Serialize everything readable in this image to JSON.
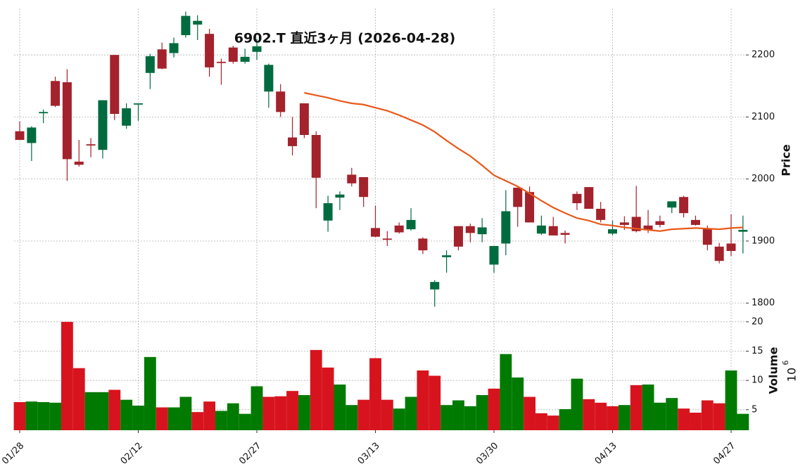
{
  "chart_data": {
    "type": "candlestick",
    "title": "6902.T 直近3ヶ月 (2026-04-28)",
    "categories": [
      "01/28",
      null,
      null,
      null,
      null,
      null,
      null,
      null,
      null,
      null,
      "02/12",
      null,
      null,
      null,
      null,
      null,
      null,
      null,
      null,
      null,
      "02/27",
      null,
      null,
      null,
      null,
      null,
      null,
      null,
      null,
      null,
      "03/13",
      null,
      null,
      null,
      null,
      null,
      null,
      null,
      null,
      null,
      "03/30",
      null,
      null,
      null,
      null,
      null,
      null,
      null,
      null,
      null,
      "04/13",
      null,
      null,
      null,
      null,
      null,
      null,
      null,
      null,
      null,
      "04/27",
      null
    ],
    "open": [
      2077,
      2058,
      2106,
      2158,
      2156,
      2028,
      2056,
      2047,
      2200,
      2086,
      2120,
      2171,
      2209,
      2203,
      2232,
      2249,
      2234,
      2189,
      2212,
      2189,
      2205,
      2141,
      2141,
      2067,
      2122,
      2071,
      1933,
      1970,
      2007,
      2003,
      1921,
      1904,
      1925,
      1919,
      1904,
      1822,
      1874,
      1924,
      1924,
      1911,
      1862,
      1896,
      1986,
      1979,
      1912,
      1924,
      1913,
      1976,
      1987,
      1952,
      1912,
      1930,
      1939,
      1925,
      1932,
      1954,
      1971,
      1934,
      1920,
      1891,
      1896,
      1915
    ],
    "high": [
      2093,
      2085,
      2112,
      2165,
      2177,
      2063,
      2066,
      2127,
      2200,
      2122,
      2122,
      2202,
      2220,
      2228,
      2270,
      2264,
      2242,
      2194,
      2215,
      2210,
      2226,
      2186,
      2153,
      2100,
      2122,
      2077,
      1973,
      1980,
      2018,
      2003,
      1957,
      1916,
      1930,
      1953,
      1906,
      1837,
      1885,
      1924,
      1928,
      1937,
      1892,
      1982,
      1986,
      1988,
      1941,
      1939,
      1917,
      1980,
      1987,
      1963,
      1933,
      1940,
      1989,
      1950,
      1941,
      1964,
      1973,
      1941,
      1925,
      1897,
      1943,
      1941
    ],
    "low": [
      2063,
      2029,
      2090,
      2116,
      1997,
      2020,
      2035,
      2033,
      2095,
      2081,
      2094,
      2145,
      2177,
      2196,
      2228,
      2224,
      2165,
      2152,
      2186,
      2186,
      2192,
      2115,
      2100,
      2038,
      2066,
      1953,
      1915,
      1950,
      1988,
      1955,
      1906,
      1892,
      1912,
      1917,
      1879,
      1794,
      1849,
      1885,
      1898,
      1898,
      1849,
      1877,
      1923,
      1930,
      1910,
      1909,
      1896,
      1950,
      1952,
      1930,
      1909,
      1918,
      1914,
      1913,
      1922,
      1945,
      1938,
      1925,
      1885,
      1864,
      1876,
      1880
    ],
    "close": [
      2063,
      2083,
      2108,
      2118,
      2032,
      2023,
      2054,
      2127,
      2105,
      2114,
      2122,
      2198,
      2178,
      2219,
      2263,
      2255,
      2180,
      2187,
      2189,
      2197,
      2214,
      2184,
      2108,
      2053,
      2071,
      2002,
      1961,
      1975,
      1993,
      1971,
      1907,
      1902,
      1914,
      1934,
      1885,
      1834,
      1877,
      1891,
      1913,
      1922,
      1892,
      1948,
      1955,
      1930,
      1925,
      1909,
      1910,
      1961,
      1952,
      1934,
      1919,
      1926,
      1916,
      1918,
      1926,
      1964,
      1945,
      1926,
      1894,
      1868,
      1884,
      1918
    ],
    "up_color": "#006b3f",
    "down_color": "#a3222b",
    "ylim": [
      1782,
      2275
    ],
    "yticks": [
      1800,
      1900,
      2000,
      2100,
      2200
    ],
    "ylabel": "Price",
    "grid": true,
    "ma": {
      "color": "#e8591a",
      "values": [
        null,
        null,
        null,
        null,
        null,
        null,
        null,
        null,
        null,
        null,
        null,
        null,
        null,
        null,
        null,
        null,
        null,
        null,
        null,
        null,
        null,
        null,
        null,
        null,
        2139,
        2135,
        2131,
        2126,
        2122,
        2120,
        2115,
        2110,
        2103,
        2095,
        2087,
        2076,
        2062,
        2049,
        2037,
        2022,
        2006,
        1997,
        1988,
        1977,
        1965,
        1954,
        1945,
        1937,
        1933,
        1927,
        1925,
        1922,
        1920,
        1918,
        1916,
        1919,
        1920,
        1921,
        1920,
        1919,
        1921,
        1922
      ]
    },
    "volume": {
      "values": [
        6.3,
        6.4,
        6.3,
        6.2,
        20.0,
        12.1,
        8.0,
        8.0,
        8.4,
        6.7,
        5.7,
        14.0,
        5.4,
        5.4,
        7.2,
        4.6,
        6.4,
        4.8,
        6.1,
        4.3,
        9.0,
        7.2,
        7.3,
        8.2,
        7.5,
        15.2,
        12.2,
        9.3,
        5.8,
        6.7,
        13.8,
        6.7,
        5.2,
        7.2,
        11.7,
        10.8,
        5.8,
        6.6,
        5.6,
        7.5,
        8.6,
        14.5,
        10.5,
        7.2,
        4.4,
        4.0,
        5.1,
        10.3,
        6.8,
        6.2,
        5.6,
        5.8,
        9.2,
        9.3,
        6.2,
        7.0,
        5.2,
        4.5,
        6.6,
        6.1,
        11.7,
        4.3
      ],
      "up_color": "#007a00",
      "down_color": "#d7141e",
      "ylim": [
        1.5,
        20.7
      ],
      "yticks": [
        5,
        10,
        15,
        20
      ],
      "ylabel": "Volume",
      "multiplier": {
        "base": "10",
        "exponent": "6"
      }
    }
  }
}
